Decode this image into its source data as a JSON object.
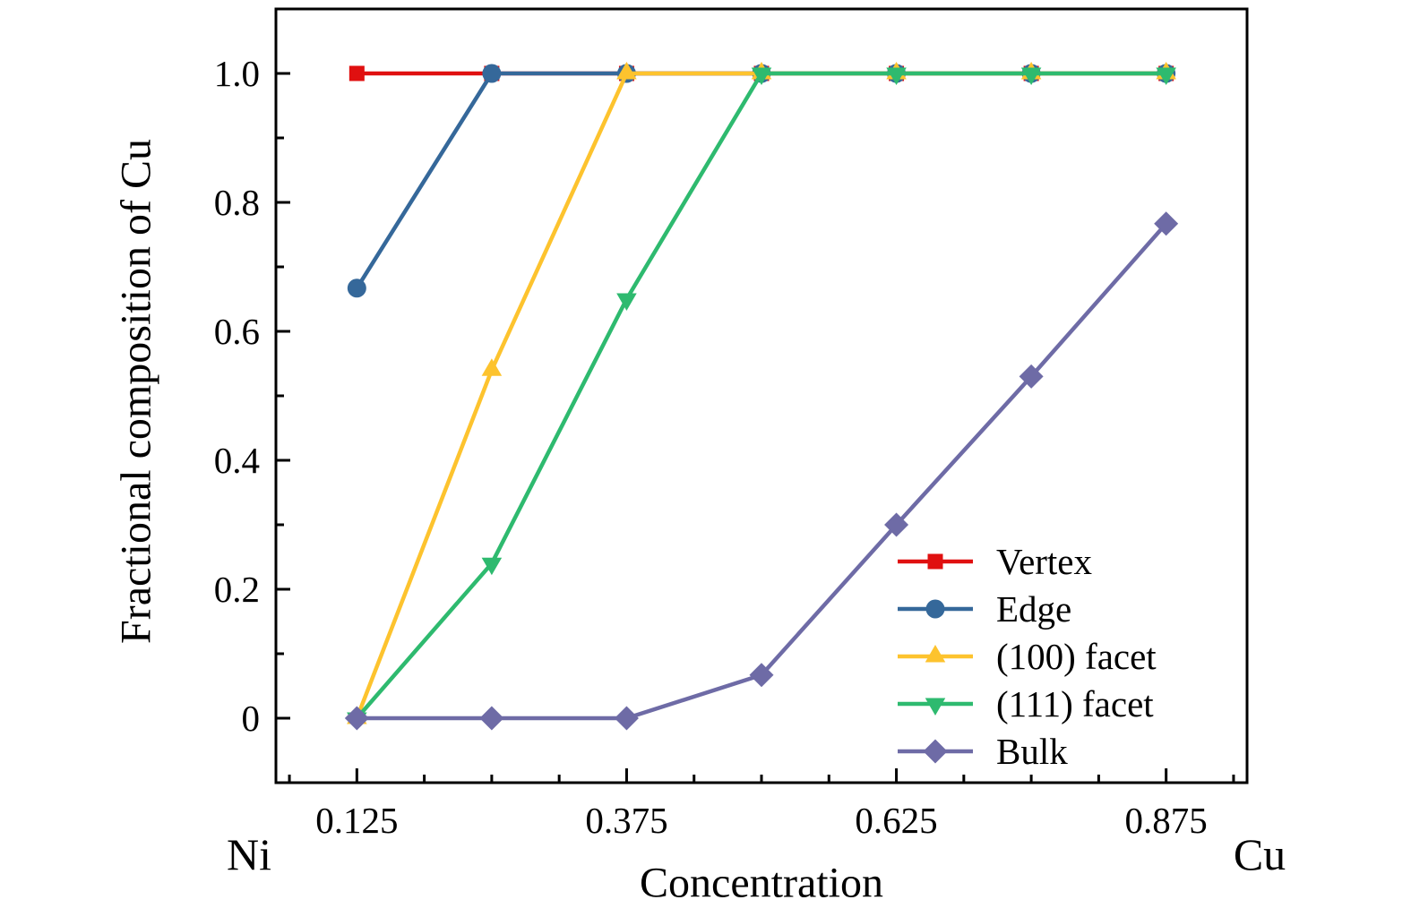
{
  "figure": {
    "background_color": "#ffffff",
    "text_color": "#000000"
  },
  "chart_data": {
    "type": "line",
    "title": "",
    "xlabel": "Concentration",
    "ylabel": "Fractional composition of Cu",
    "x_endpoint_labels": {
      "left": "Ni",
      "right": "Cu"
    },
    "x": [
      0.125,
      0.25,
      0.375,
      0.5,
      0.625,
      0.75,
      0.875
    ],
    "xlim": [
      0.05,
      0.95
    ],
    "ylim": [
      -0.1,
      1.1
    ],
    "x_major_ticks": [
      0.125,
      0.375,
      0.625,
      0.875
    ],
    "x_major_tick_labels": [
      "0.125",
      "0.375",
      "0.625",
      "0.875"
    ],
    "x_minor_tick_step": 0.0625,
    "y_major_ticks": [
      0,
      0.2,
      0.4,
      0.6,
      0.8,
      1.0
    ],
    "y_major_tick_labels": [
      "0",
      "0.2",
      "0.4",
      "0.6",
      "0.8",
      "1.0"
    ],
    "y_minor_tick_step": 0.1,
    "grid": false,
    "legend_position": "lower right",
    "series": [
      {
        "name": "Vertex",
        "marker": "square",
        "color": "#e01010",
        "values": [
          1,
          1,
          1,
          1,
          1,
          1,
          1
        ]
      },
      {
        "name": "Edge",
        "marker": "circle",
        "color": "#35689a",
        "values": [
          0.667,
          1,
          1,
          1,
          1,
          1,
          1
        ]
      },
      {
        "name": "(100) facet",
        "marker": "triangle-up",
        "color": "#fdc32e",
        "values": [
          0,
          0.54,
          1,
          1,
          1,
          1,
          1
        ]
      },
      {
        "name": "(111) facet",
        "marker": "triangle-down",
        "color": "#2eba6f",
        "values": [
          0,
          0.24,
          0.65,
          1,
          1,
          1,
          1
        ]
      },
      {
        "name": "Bulk",
        "marker": "diamond",
        "color": "#6e6ba6",
        "values": [
          0,
          0,
          0,
          0.067,
          0.3,
          0.53,
          0.767
        ]
      }
    ]
  }
}
